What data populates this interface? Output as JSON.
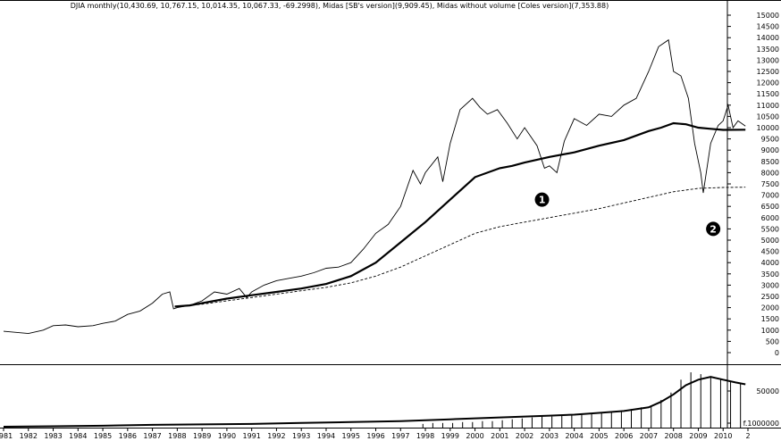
{
  "chart_data": [
    {
      "type": "line",
      "title": "DJIA monthly(10,430.69, 10,767.15, 10,014.35, 10,067.33, -69.2998), Midas [SB's version](9,909.45), Midas without volume [Coles version](7,353.88)",
      "xlabel": "",
      "ylabel": "",
      "xlim": [
        1981.0,
        2011.0
      ],
      "ylim": [
        -400,
        15300
      ],
      "y_ticks": [
        0,
        500,
        1000,
        1500,
        2000,
        2500,
        3000,
        3500,
        4000,
        4500,
        5000,
        5500,
        6000,
        6500,
        7000,
        7500,
        8000,
        8500,
        9000,
        9500,
        10000,
        10500,
        11000,
        11500,
        12000,
        12500,
        13000,
        13500,
        14000,
        14500,
        15000
      ],
      "x_tick_labels": [
        "1981",
        "1982",
        "1983",
        "1984",
        "1985",
        "1986",
        "1987",
        "1988",
        "1989",
        "1990",
        "1991",
        "1992",
        "1993",
        "1994",
        "1995",
        "1996",
        "1997",
        "1998",
        "1999",
        "2000",
        "2001",
        "2002",
        "2003",
        "2004",
        "2005",
        "2006",
        "2007",
        "2008",
        "2009",
        "2010",
        "2"
      ],
      "grid": false,
      "legend": "none",
      "series": [
        {
          "name": "DJIA monthly",
          "style": "thin-solid",
          "x": [
            1981.0,
            1981.5,
            1982.0,
            1982.6,
            1983.0,
            1983.5,
            1984.0,
            1984.6,
            1985.0,
            1985.5,
            1986.0,
            1986.5,
            1987.0,
            1987.4,
            1987.7,
            1987.85,
            1988.0,
            1988.5,
            1989.0,
            1989.5,
            1990.0,
            1990.5,
            1990.8,
            1991.0,
            1991.5,
            1992.0,
            1992.5,
            1993.0,
            1993.5,
            1994.0,
            1994.5,
            1995.0,
            1995.5,
            1996.0,
            1996.5,
            1997.0,
            1997.5,
            1997.8,
            1998.0,
            1998.5,
            1998.7,
            1999.0,
            1999.4,
            1999.9,
            2000.2,
            2000.5,
            2000.9,
            2001.3,
            2001.7,
            2002.0,
            2002.5,
            2002.8,
            2003.0,
            2003.3,
            2003.6,
            2004.0,
            2004.5,
            2005.0,
            2005.5,
            2006.0,
            2006.5,
            2007.0,
            2007.4,
            2007.8,
            2008.0,
            2008.3,
            2008.6,
            2008.85,
            2009.1,
            2009.2,
            2009.5,
            2009.8,
            2010.0,
            2010.2,
            2010.4,
            2010.6,
            2010.9
          ],
          "values": [
            950,
            900,
            850,
            1000,
            1200,
            1230,
            1150,
            1200,
            1300,
            1400,
            1700,
            1850,
            2200,
            2600,
            2700,
            1950,
            2000,
            2100,
            2300,
            2700,
            2600,
            2850,
            2450,
            2700,
            3000,
            3200,
            3300,
            3400,
            3550,
            3750,
            3800,
            4000,
            4600,
            5300,
            5700,
            6500,
            8100,
            7500,
            8000,
            8700,
            7600,
            9300,
            10800,
            11300,
            10900,
            10600,
            10800,
            10200,
            9500,
            10000,
            9200,
            8200,
            8300,
            8000,
            9400,
            10400,
            10100,
            10600,
            10500,
            11000,
            11300,
            12500,
            13600,
            13900,
            12500,
            12300,
            11300,
            9300,
            8000,
            7100,
            9300,
            10100,
            10300,
            11000,
            10000,
            10300,
            10067
          ]
        },
        {
          "name": "Midas [SB's version]",
          "style": "thick-solid",
          "x": [
            1987.9,
            1988.5,
            1989.0,
            1990.0,
            1991.0,
            1992.0,
            1993.0,
            1994.0,
            1995.0,
            1996.0,
            1997.0,
            1998.0,
            1999.0,
            2000.0,
            2001.0,
            2001.5,
            2002.0,
            2003.0,
            2004.0,
            2005.0,
            2006.0,
            2007.0,
            2007.5,
            2008.0,
            2008.5,
            2009.0,
            2009.5,
            2010.0,
            2010.9
          ],
          "values": [
            2050,
            2100,
            2200,
            2400,
            2550,
            2700,
            2850,
            3050,
            3400,
            4000,
            4900,
            5800,
            6800,
            7800,
            8200,
            8300,
            8450,
            8700,
            8900,
            9200,
            9450,
            9850,
            10000,
            10200,
            10150,
            10000,
            9950,
            9900,
            9909
          ]
        },
        {
          "name": "Midas without volume [Coles version]",
          "style": "dashed",
          "x": [
            1987.9,
            1989.0,
            1990.0,
            1991.0,
            1992.0,
            1993.0,
            1994.0,
            1995.0,
            1996.0,
            1997.0,
            1998.0,
            1999.0,
            2000.0,
            2001.0,
            2002.0,
            2003.0,
            2004.0,
            2005.0,
            2006.0,
            2007.0,
            2008.0,
            2009.0,
            2010.0,
            2010.9
          ],
          "values": [
            2050,
            2150,
            2300,
            2450,
            2600,
            2750,
            2900,
            3100,
            3400,
            3800,
            4300,
            4800,
            5300,
            5600,
            5800,
            6000,
            6200,
            6400,
            6650,
            6900,
            7150,
            7300,
            7340,
            7354
          ]
        }
      ],
      "annotations": [
        "1",
        "2"
      ]
    },
    {
      "type": "bar",
      "title": "",
      "xlabel": "",
      "ylabel": "",
      "xlim": [
        1981.0,
        2011.0
      ],
      "y_ticks_labels": [
        "50000",
        "f.1000000"
      ],
      "bar_x": [
        1997.9,
        1998.3,
        1998.7,
        1999.1,
        1999.5,
        1999.9,
        2000.3,
        2000.7,
        2001.1,
        2001.5,
        2001.9,
        2002.3,
        2002.7,
        2003.1,
        2003.5,
        2003.9,
        2004.3,
        2004.7,
        2005.1,
        2005.5,
        2005.9,
        2006.3,
        2006.7,
        2007.1,
        2007.5,
        2007.9,
        2008.3,
        2008.7,
        2009.1,
        2009.5,
        2009.9,
        2010.3,
        2010.7
      ],
      "bar_values": [
        4,
        5,
        5,
        5,
        6,
        6,
        7,
        7,
        8,
        9,
        10,
        11,
        12,
        12,
        13,
        14,
        14,
        15,
        16,
        17,
        18,
        20,
        22,
        24,
        30,
        38,
        52,
        60,
        58,
        55,
        52,
        50,
        48
      ],
      "series": [
        {
          "name": "",
          "style": "thick-line",
          "x": [
            1981,
            1983,
            1985,
            1987,
            1989,
            1991,
            1993,
            1995,
            1997,
            1999,
            2001,
            2002,
            2003,
            2004,
            2005,
            2006,
            2007,
            2007.5,
            2008,
            2008.5,
            2009,
            2009.5,
            2010,
            2010.5,
            2010.9
          ],
          "values": [
            1,
            1.5,
            2,
            3,
            3.5,
            4,
            5,
            6,
            7,
            9,
            11,
            12,
            13,
            14,
            16,
            18,
            22,
            28,
            36,
            46,
            52,
            55,
            52,
            49,
            47
          ]
        }
      ]
    }
  ]
}
